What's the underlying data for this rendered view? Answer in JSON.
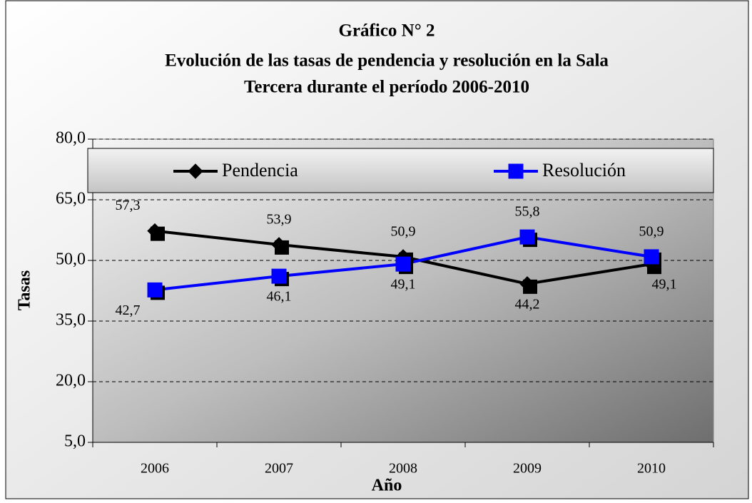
{
  "chart_data": {
    "type": "line",
    "title": [
      "Gráfico N° 2",
      "Evolución de las tasas de pendencia y resolución en la Sala",
      "Tercera durante el período 2006-2010"
    ],
    "xlabel": "Año",
    "ylabel": "Tasas",
    "categories": [
      "2006",
      "2007",
      "2008",
      "2009",
      "2010"
    ],
    "series": [
      {
        "name": "Pendencia",
        "color": "#000000",
        "marker": "diamond",
        "values": [
          57.3,
          53.9,
          50.9,
          44.2,
          49.1
        ],
        "value_labels": [
          "57,3",
          "53,9",
          "50,9",
          "44,2",
          "49,1"
        ]
      },
      {
        "name": "Resolución",
        "color": "#0000ff",
        "marker": "square",
        "values": [
          42.7,
          46.1,
          49.1,
          55.8,
          50.9
        ],
        "value_labels": [
          "42,7",
          "46,1",
          "49,1",
          "55,8",
          "50,9"
        ]
      }
    ],
    "ylim": [
      5,
      80
    ],
    "yticks": [
      {
        "value": 5,
        "label": "5,0"
      },
      {
        "value": 20,
        "label": "20,0"
      },
      {
        "value": 35,
        "label": "35,0"
      },
      {
        "value": 50,
        "label": "50,0"
      },
      {
        "value": 65,
        "label": "65,0"
      },
      {
        "value": 80,
        "label": "80,0"
      }
    ],
    "grid": true,
    "legend": "top"
  }
}
